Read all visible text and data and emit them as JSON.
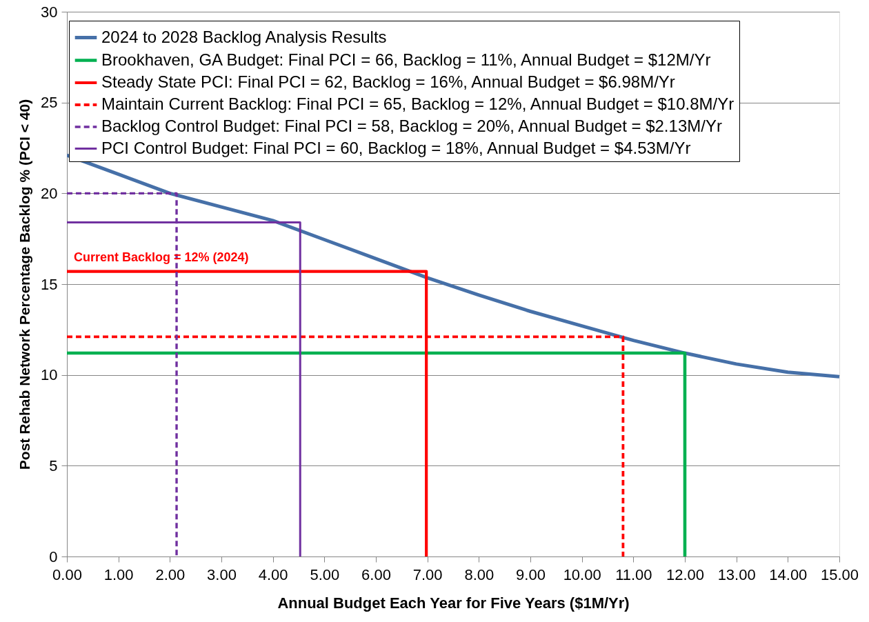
{
  "chart_data": {
    "type": "line",
    "xlabel": "Annual Budget Each Year for Five Years ($1M/Yr)",
    "ylabel": "Post Rehab Network Percentage Backlog % (PCI < 40)",
    "xlim": [
      0,
      15
    ],
    "ylim": [
      0,
      30
    ],
    "xticks": [
      {
        "value": 0,
        "label": "0.00"
      },
      {
        "value": 1,
        "label": "1.00"
      },
      {
        "value": 2,
        "label": "2.00"
      },
      {
        "value": 3,
        "label": "3.00"
      },
      {
        "value": 4,
        "label": "4.00"
      },
      {
        "value": 5,
        "label": "5.00"
      },
      {
        "value": 6,
        "label": "6.00"
      },
      {
        "value": 7,
        "label": "7.00"
      },
      {
        "value": 8,
        "label": "8.00"
      },
      {
        "value": 9,
        "label": "9.00"
      },
      {
        "value": 10,
        "label": "10.00"
      },
      {
        "value": 11,
        "label": "11.00"
      },
      {
        "value": 12,
        "label": "12.00"
      },
      {
        "value": 13,
        "label": "13.00"
      },
      {
        "value": 14,
        "label": "14.00"
      },
      {
        "value": 15,
        "label": "15.00"
      }
    ],
    "yticks": [
      0,
      5,
      10,
      15,
      20,
      25,
      30
    ],
    "grid": "y",
    "legend": "top",
    "annotations": [
      "Current Backlog = 12% (2024)"
    ],
    "series": [
      {
        "name": "2024 to 2028 Backlog Analysis Results",
        "color": "#4670a8",
        "line_style": "solid",
        "x": [
          0,
          1,
          2,
          3,
          4,
          5,
          6,
          7,
          8,
          9,
          10,
          11,
          12,
          13,
          14,
          15
        ],
        "values": [
          22.1,
          21.05,
          20.0,
          19.25,
          18.5,
          17.45,
          16.4,
          15.35,
          14.4,
          13.5,
          12.7,
          11.9,
          11.2,
          10.6,
          10.15,
          9.9
        ]
      },
      {
        "name": "Brookhaven, GA Budget: Final PCI = 66, Backlog = 11%, Annual Budget = $12M/Yr",
        "color": "#00b050",
        "line_style": "solid",
        "x": [
          0,
          12,
          12
        ],
        "values": [
          11.2,
          11.2,
          0
        ]
      },
      {
        "name": "Steady State PCI: Final PCI = 62, Backlog = 16%, Annual Budget = $6.98M/Yr",
        "color": "#ff0000",
        "line_style": "solid",
        "x": [
          0,
          6.98,
          6.98
        ],
        "values": [
          15.7,
          15.7,
          0
        ]
      },
      {
        "name": "Maintain Current Backlog: Final PCI = 65, Backlog = 12%, Annual Budget = $10.8M/Yr",
        "color": "#ff0000",
        "line_style": "dashed",
        "x": [
          0,
          10.8,
          10.8
        ],
        "values": [
          12.1,
          12.1,
          0
        ]
      },
      {
        "name": "Backlog Control Budget: Final PCI = 58, Backlog = 20%, Annual Budget = $2.13M/Yr",
        "color": "#7030a0",
        "line_style": "dashed",
        "x": [
          0,
          2.13,
          2.13
        ],
        "values": [
          20.0,
          20.0,
          0
        ]
      },
      {
        "name": "PCI Control Budget: Final PCI = 60, Backlog = 18%, Annual Budget = $4.53M/Yr",
        "color": "#7030a0",
        "line_style": "solid",
        "x": [
          0,
          4.53,
          4.53
        ],
        "values": [
          18.4,
          18.4,
          0
        ]
      }
    ]
  }
}
